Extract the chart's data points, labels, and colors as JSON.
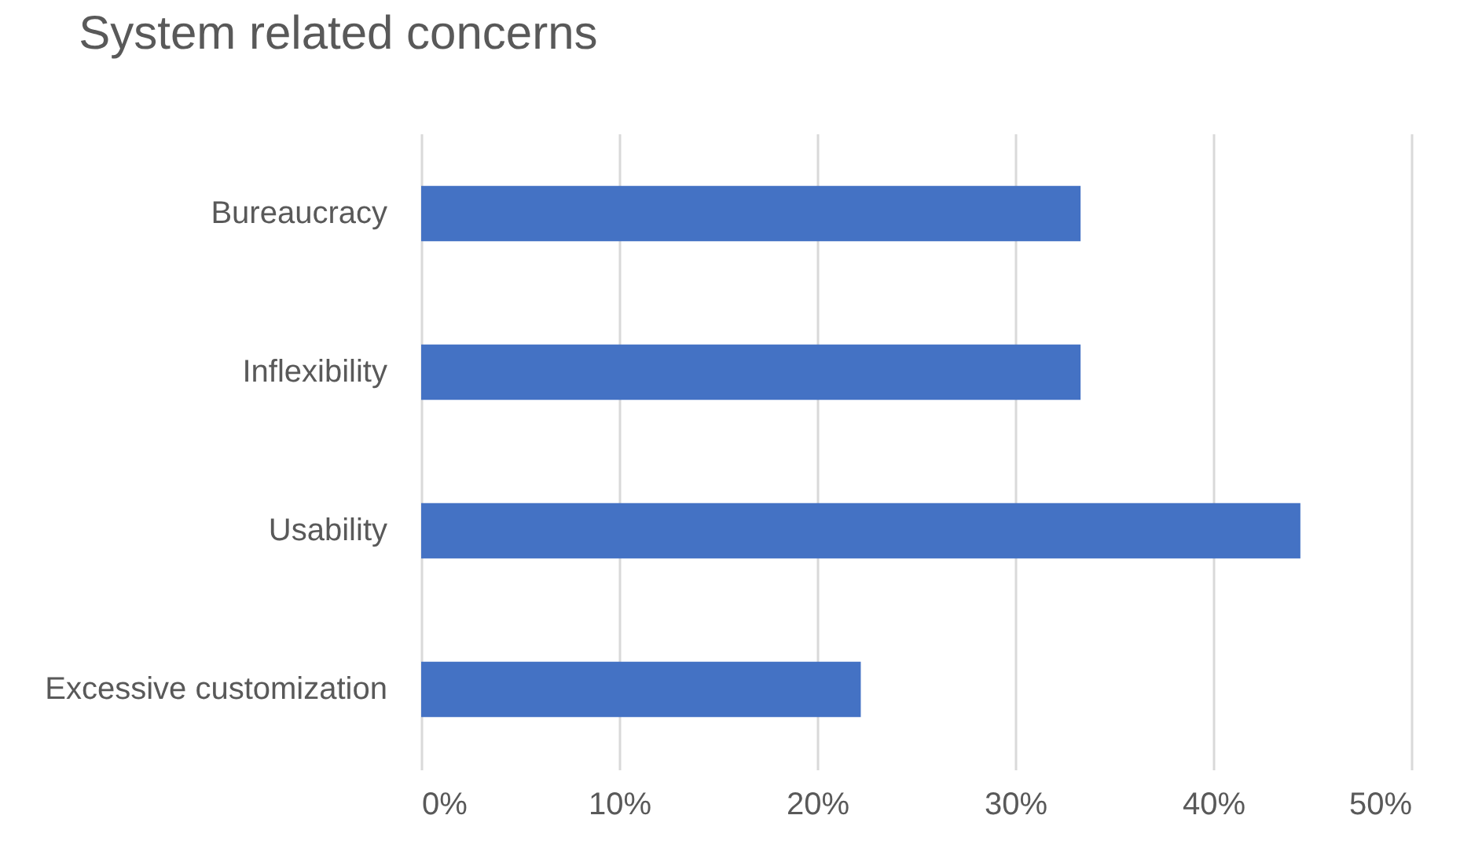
{
  "chart_data": {
    "type": "bar",
    "orientation": "horizontal",
    "title": "System related concerns",
    "categories": [
      "Bureaucracy",
      "Inflexibility",
      "Usability",
      "Excessive customization"
    ],
    "values": [
      33.3,
      33.3,
      44.4,
      22.2
    ],
    "color": "#4472c4",
    "xlim": [
      0,
      50
    ],
    "xticks": [
      {
        "value": 0,
        "label": "0%"
      },
      {
        "value": 10,
        "label": "10%"
      },
      {
        "value": 20,
        "label": "20%"
      },
      {
        "value": 30,
        "label": "30%"
      },
      {
        "value": 40,
        "label": "40%"
      },
      {
        "value": 50,
        "label": "50%"
      }
    ],
    "grid": "x"
  }
}
